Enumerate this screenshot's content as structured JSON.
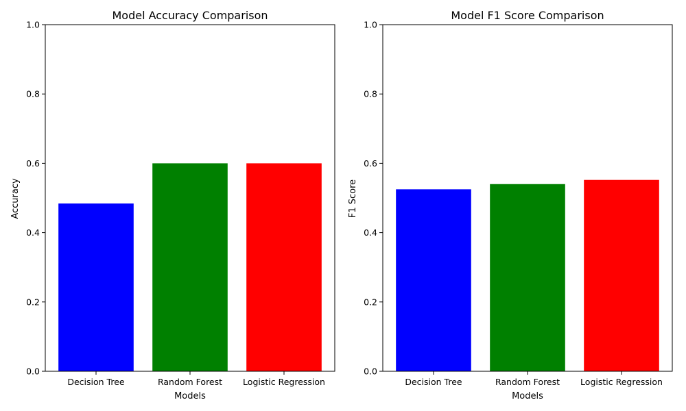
{
  "chart_data": [
    {
      "type": "bar",
      "title": "Model Accuracy Comparison",
      "xlabel": "Models",
      "ylabel": "Accuracy",
      "categories": [
        "Decision Tree",
        "Random Forest",
        "Logistic Regression"
      ],
      "values": [
        0.484,
        0.6,
        0.6
      ],
      "colors": [
        "#0000ff",
        "#008000",
        "#ff0000"
      ],
      "ylim": [
        0,
        1
      ],
      "yticks": [
        "0.0",
        "0.2",
        "0.4",
        "0.6",
        "0.8",
        "1.0"
      ],
      "grid": false,
      "legend": "none"
    },
    {
      "type": "bar",
      "title": "Model F1 Score Comparison",
      "xlabel": "Models",
      "ylabel": "F1 Score",
      "categories": [
        "Decision Tree",
        "Random Forest",
        "Logistic Regression"
      ],
      "values": [
        0.525,
        0.54,
        0.552
      ],
      "colors": [
        "#0000ff",
        "#008000",
        "#ff0000"
      ],
      "ylim": [
        0,
        1
      ],
      "yticks": [
        "0.0",
        "0.2",
        "0.4",
        "0.6",
        "0.8",
        "1.0"
      ],
      "grid": false,
      "legend": "none"
    }
  ]
}
